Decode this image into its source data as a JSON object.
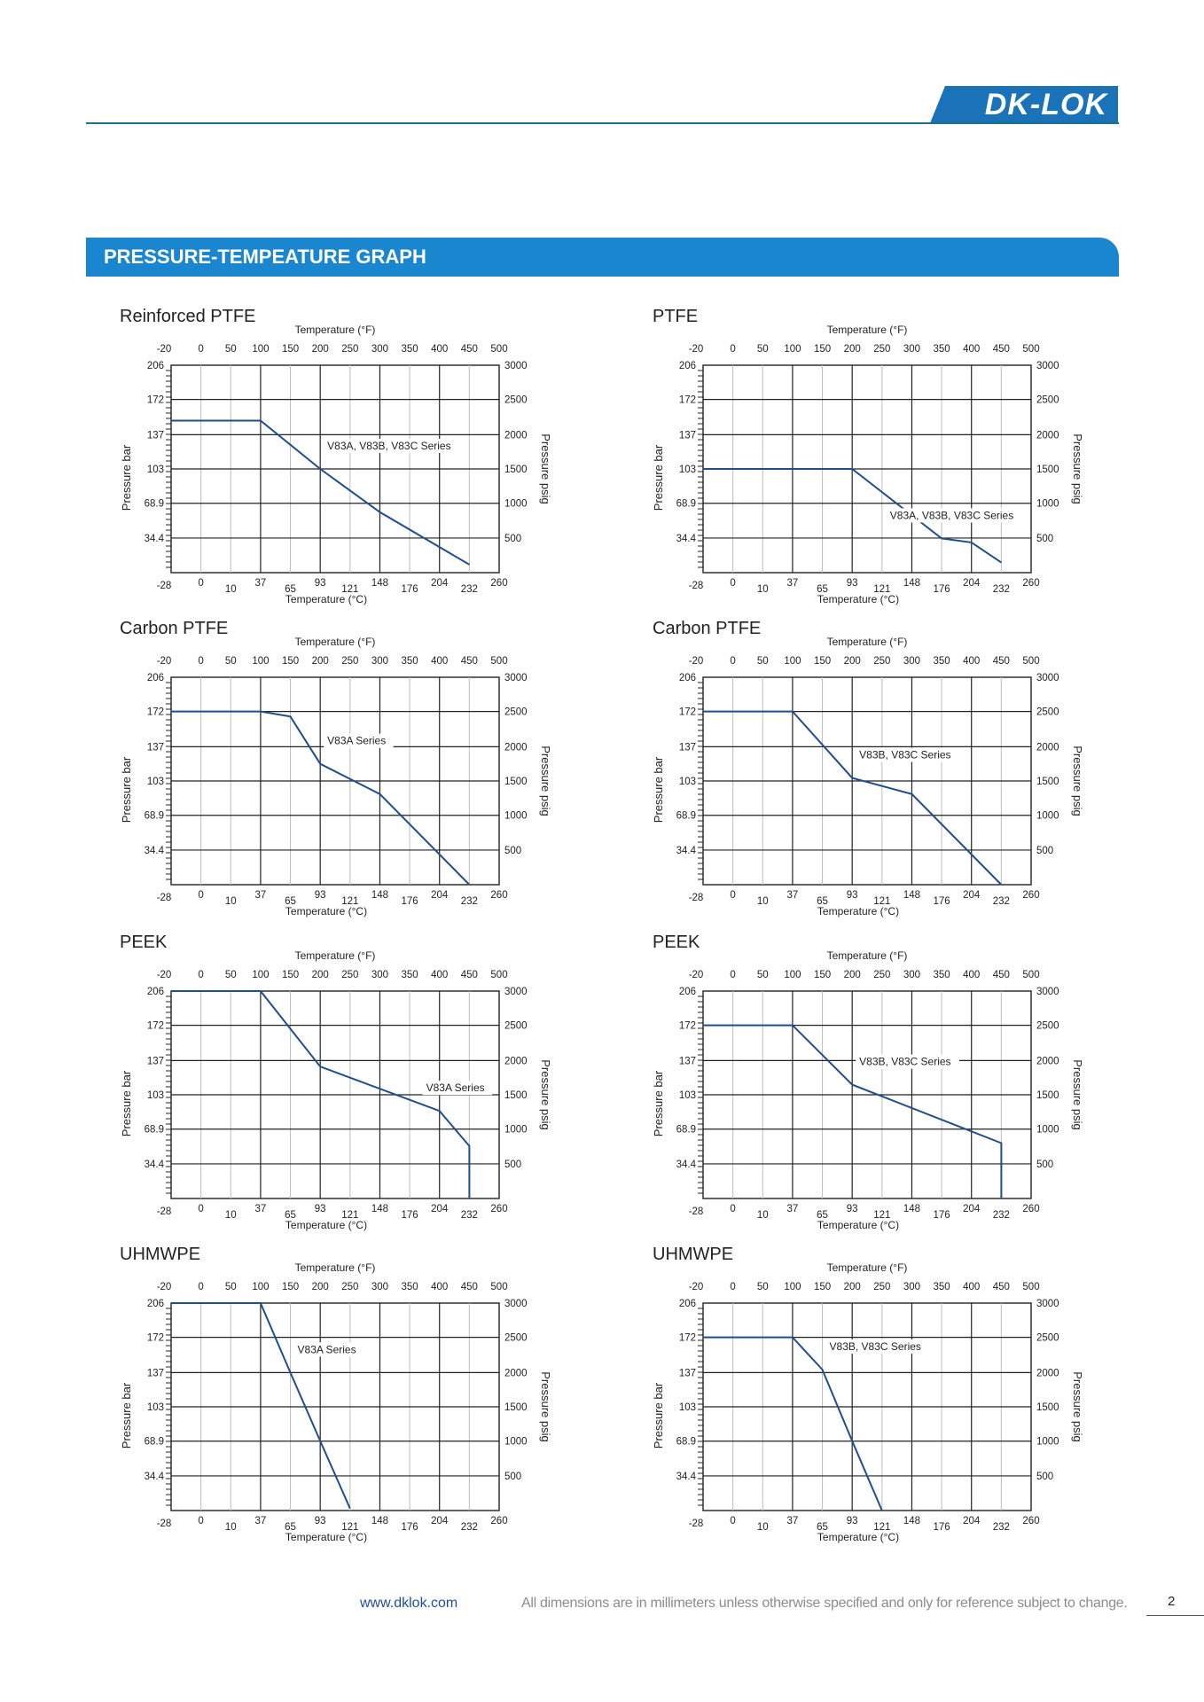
{
  "brand": {
    "logo_text": "DK-LOK",
    "accent": "#1a86d0",
    "line_color": "#1f4e8c"
  },
  "section": {
    "title": "PRESSURE-TEMPEATURE GRAPH"
  },
  "footer": {
    "url": "www.dklok.com",
    "note": "All dimensions are in millimeters unless otherwise specified and only for reference subject to change.",
    "page": "2"
  },
  "chart_data": [
    {
      "type": "line",
      "title": "Reinforced  PTFE",
      "x_top_label": "Temperature (°F)",
      "x_bottom_label": "Temperature (°C)",
      "y_left_label": "Pressure bar",
      "y_right_label": "Pressure psig",
      "x_top_ticks": [
        "-20",
        "0",
        "50",
        "100",
        "150",
        "200",
        "250",
        "300",
        "350",
        "400",
        "450",
        "500"
      ],
      "x_bottom_ticks": [
        "-28",
        "0",
        "10",
        "37",
        "65",
        "93",
        "121",
        "148",
        "176",
        "204",
        "232",
        "260"
      ],
      "y_left_ticks": [
        "206",
        "172",
        "137",
        "103",
        "68.9",
        "34.4"
      ],
      "y_right_ticks": [
        "3000",
        "2500",
        "2000",
        "1500",
        "1000",
        "500"
      ],
      "xlim": [
        -28,
        260
      ],
      "ylim": [
        0,
        206
      ],
      "grid": true,
      "annotation": "V83A, V83B, V83C Series",
      "series": [
        {
          "name": "V83A, V83B, V83C Series",
          "x": [
            -28,
            37,
            93,
            148,
            232
          ],
          "y": [
            151,
            151,
            103,
            60,
            8
          ]
        }
      ]
    },
    {
      "type": "line",
      "title": "PTFE",
      "x_top_label": "Temperature (°F)",
      "x_bottom_label": "Temperature (°C)",
      "y_left_label": "Pressure bar",
      "y_right_label": "Pressure psig",
      "x_top_ticks": [
        "-20",
        "0",
        "50",
        "100",
        "150",
        "200",
        "250",
        "300",
        "350",
        "400",
        "450",
        "500"
      ],
      "x_bottom_ticks": [
        "-28",
        "0",
        "10",
        "37",
        "65",
        "93",
        "121",
        "148",
        "176",
        "204",
        "232",
        "260"
      ],
      "y_left_ticks": [
        "206",
        "172",
        "137",
        "103",
        "68.9",
        "34.4"
      ],
      "y_right_ticks": [
        "3000",
        "2500",
        "2000",
        "1500",
        "1000",
        "500"
      ],
      "xlim": [
        -28,
        260
      ],
      "ylim": [
        0,
        206
      ],
      "grid": true,
      "annotation": "V83A, V83B, V83C Series",
      "series": [
        {
          "name": "V83A, V83B, V83C Series",
          "x": [
            -28,
            93,
            176,
            204,
            232
          ],
          "y": [
            103,
            103,
            34,
            30,
            10
          ]
        }
      ]
    },
    {
      "type": "line",
      "title": "Carbon   PTFE",
      "x_top_label": "Temperature (°F)",
      "x_bottom_label": "Temperature (°C)",
      "y_left_label": "Pressure bar",
      "y_right_label": "Pressure psig",
      "x_top_ticks": [
        "-20",
        "0",
        "50",
        "100",
        "150",
        "200",
        "250",
        "300",
        "350",
        "400",
        "450",
        "500"
      ],
      "x_bottom_ticks": [
        "-28",
        "0",
        "10",
        "37",
        "65",
        "93",
        "121",
        "148",
        "176",
        "204",
        "232",
        "260"
      ],
      "y_left_ticks": [
        "206",
        "172",
        "137",
        "103",
        "68.9",
        "34.4"
      ],
      "y_right_ticks": [
        "3000",
        "2500",
        "2000",
        "1500",
        "1000",
        "500"
      ],
      "xlim": [
        -28,
        260
      ],
      "ylim": [
        0,
        206
      ],
      "grid": true,
      "annotation": "V83A Series",
      "series": [
        {
          "name": "V83A Series",
          "x": [
            -28,
            37,
            65,
            93,
            148,
            232
          ],
          "y": [
            172,
            172,
            167,
            120,
            90,
            0
          ]
        }
      ]
    },
    {
      "type": "line",
      "title": "Carbon PTFE",
      "x_top_label": "Temperature (°F)",
      "x_bottom_label": "Temperature (°C)",
      "y_left_label": "Pressure bar",
      "y_right_label": "Pressure psig",
      "x_top_ticks": [
        "-20",
        "0",
        "50",
        "100",
        "150",
        "200",
        "250",
        "300",
        "350",
        "400",
        "450",
        "500"
      ],
      "x_bottom_ticks": [
        "-28",
        "0",
        "10",
        "37",
        "65",
        "93",
        "121",
        "148",
        "176",
        "204",
        "232",
        "260"
      ],
      "y_left_ticks": [
        "206",
        "172",
        "137",
        "103",
        "68.9",
        "34.4"
      ],
      "y_right_ticks": [
        "3000",
        "2500",
        "2000",
        "1500",
        "1000",
        "500"
      ],
      "xlim": [
        -28,
        260
      ],
      "ylim": [
        0,
        206
      ],
      "grid": true,
      "annotation": "V83B, V83C Series",
      "series": [
        {
          "name": "V83B, V83C Series",
          "x": [
            -28,
            37,
            93,
            148,
            232
          ],
          "y": [
            172,
            172,
            106,
            90,
            0
          ]
        }
      ]
    },
    {
      "type": "line",
      "title": "PEEK",
      "x_top_label": "Temperature (°F)",
      "x_bottom_label": "Temperature (°C)",
      "y_left_label": "Pressure bar",
      "y_right_label": "Pressure psig",
      "x_top_ticks": [
        "-20",
        "0",
        "50",
        "100",
        "150",
        "200",
        "250",
        "300",
        "350",
        "400",
        "450",
        "500"
      ],
      "x_bottom_ticks": [
        "-28",
        "0",
        "10",
        "37",
        "65",
        "93",
        "121",
        "148",
        "176",
        "204",
        "232",
        "260"
      ],
      "y_left_ticks": [
        "206",
        "172",
        "137",
        "103",
        "68.9",
        "34.4"
      ],
      "y_right_ticks": [
        "3000",
        "2500",
        "2000",
        "1500",
        "1000",
        "500"
      ],
      "xlim": [
        -28,
        260
      ],
      "ylim": [
        0,
        206
      ],
      "grid": true,
      "annotation": "V83A Series",
      "series": [
        {
          "name": "V83A Series",
          "x": [
            -28,
            37,
            93,
            204,
            232,
            232
          ],
          "y": [
            206,
            206,
            131,
            87,
            52,
            0
          ]
        }
      ]
    },
    {
      "type": "line",
      "title": "PEEK",
      "x_top_label": "Temperature (°F)",
      "x_bottom_label": "Temperature (°C)",
      "y_left_label": "Pressure bar",
      "y_right_label": "Pressure psig",
      "x_top_ticks": [
        "-20",
        "0",
        "50",
        "100",
        "150",
        "200",
        "250",
        "300",
        "350",
        "400",
        "450",
        "500"
      ],
      "x_bottom_ticks": [
        "-28",
        "0",
        "10",
        "37",
        "65",
        "93",
        "121",
        "148",
        "176",
        "204",
        "232",
        "260"
      ],
      "y_left_ticks": [
        "206",
        "172",
        "137",
        "103",
        "68.9",
        "34.4"
      ],
      "y_right_ticks": [
        "3000",
        "2500",
        "2000",
        "1500",
        "1000",
        "500"
      ],
      "xlim": [
        -28,
        260
      ],
      "ylim": [
        0,
        206
      ],
      "grid": true,
      "annotation": "V83B, V83C Series",
      "series": [
        {
          "name": "V83B, V83C Series",
          "x": [
            -28,
            37,
            93,
            232,
            232
          ],
          "y": [
            172,
            172,
            113,
            55,
            0
          ]
        }
      ]
    },
    {
      "type": "line",
      "title": "UHMWPE",
      "x_top_label": "Temperature (°F)",
      "x_bottom_label": "Temperature (°C)",
      "y_left_label": "Pressure bar",
      "y_right_label": "Pressure psig",
      "x_top_ticks": [
        "-20",
        "0",
        "50",
        "100",
        "150",
        "200",
        "250",
        "300",
        "350",
        "400",
        "450",
        "500"
      ],
      "x_bottom_ticks": [
        "-28",
        "0",
        "10",
        "37",
        "65",
        "93",
        "121",
        "148",
        "176",
        "204",
        "232",
        "260"
      ],
      "y_left_ticks": [
        "206",
        "172",
        "137",
        "103",
        "68.9",
        "34.4"
      ],
      "y_right_ticks": [
        "3000",
        "2500",
        "2000",
        "1500",
        "1000",
        "500"
      ],
      "xlim": [
        -28,
        260
      ],
      "ylim": [
        0,
        206
      ],
      "grid": true,
      "annotation": "V83A Series",
      "series": [
        {
          "name": "V83A Series",
          "x": [
            -28,
            37,
            65,
            93,
            121
          ],
          "y": [
            206,
            206,
            137,
            69,
            2
          ]
        }
      ]
    },
    {
      "type": "line",
      "title": "UHMWPE",
      "x_top_label": "Temperature (°F)",
      "x_bottom_label": "Temperature (°C)",
      "y_left_label": "Pressure bar",
      "y_right_label": "Pressure psig",
      "x_top_ticks": [
        "-20",
        "0",
        "50",
        "100",
        "150",
        "200",
        "250",
        "300",
        "350",
        "400",
        "450",
        "500"
      ],
      "x_bottom_ticks": [
        "-28",
        "0",
        "10",
        "37",
        "65",
        "93",
        "121",
        "148",
        "176",
        "204",
        "232",
        "260"
      ],
      "y_left_ticks": [
        "206",
        "172",
        "137",
        "103",
        "68.9",
        "34.4"
      ],
      "y_right_ticks": [
        "3000",
        "2500",
        "2000",
        "1500",
        "1000",
        "500"
      ],
      "xlim": [
        -28,
        260
      ],
      "ylim": [
        0,
        206
      ],
      "grid": true,
      "annotation": "V83B, V83C Series",
      "series": [
        {
          "name": "V83B, V83C Series",
          "x": [
            -28,
            37,
            65,
            93,
            121
          ],
          "y": [
            172,
            172,
            140,
            69,
            0
          ]
        }
      ]
    }
  ]
}
